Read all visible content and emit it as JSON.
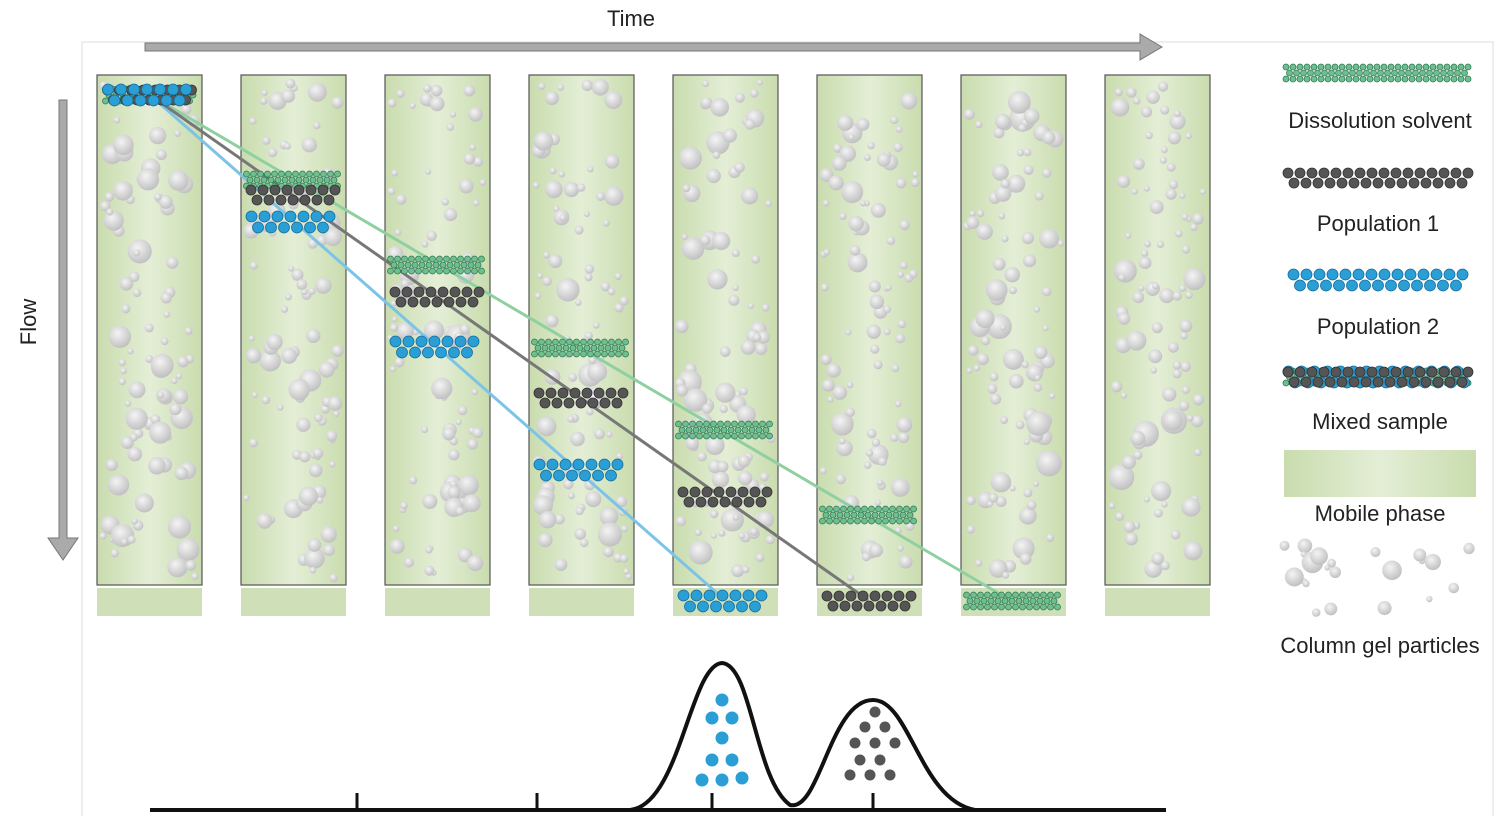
{
  "axes": {
    "time": "Time",
    "flow": "Flow"
  },
  "legend": [
    {
      "label": "Dissolution solvent"
    },
    {
      "label": "Population 1"
    },
    {
      "label": "Population 2"
    },
    {
      "label": "Mixed sample"
    },
    {
      "label": "Mobile phase"
    },
    {
      "label": "Column gel particles"
    }
  ]
}
